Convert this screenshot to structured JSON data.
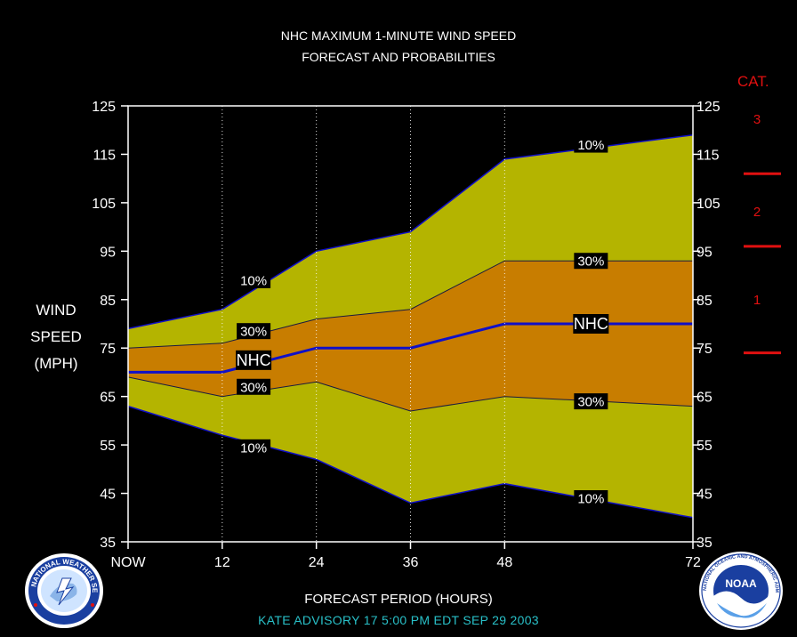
{
  "title": {
    "line1": "NHC MAXIMUM 1-MINUTE WIND SPEED",
    "line2": "FORECAST AND PROBABILITIES"
  },
  "ylabel_lines": [
    "WIND",
    "SPEED",
    "(MPH)"
  ],
  "xlabel": "FORECAST PERIOD (HOURS)",
  "advisory": "KATE   ADVISORY  17  5:00  PM  EDT  SEP  29  2003",
  "category": {
    "title": "CAT.",
    "labels": [
      "3",
      "2",
      "1"
    ],
    "thresholds_mph": [
      111,
      96,
      74
    ]
  },
  "colors": {
    "outer_band": "#b4b400",
    "inner_band": "#c87d00",
    "nhc_line": "#1010c8",
    "category": "#e01010",
    "advisory": "#29c0c8"
  },
  "logos": {
    "left": "nws-logo",
    "right": "noaa-logo",
    "left_ring_text": "NATIONAL WEATHER SERVICE",
    "right_ring_text": "NATIONAL OCEANIC AND ATMOSPHERIC ADMINISTRATION U.S. DEPARTMENT OF COMMERCE",
    "right_center_text": "NOAA"
  },
  "chart_data": {
    "type": "area",
    "x": [
      0,
      12,
      24,
      36,
      48,
      72
    ],
    "xticks": [
      0,
      12,
      24,
      36,
      48,
      72
    ],
    "xtick_labels": [
      "NOW",
      "12",
      "24",
      "36",
      "48",
      "72"
    ],
    "xlim": [
      0,
      72
    ],
    "ylim": [
      35,
      125
    ],
    "yticks": [
      35,
      45,
      55,
      65,
      75,
      85,
      95,
      105,
      115,
      125
    ],
    "grid": "vertical dotted at forecast hours",
    "series": [
      {
        "name": "10%",
        "role": "upper_outer",
        "values": [
          79,
          83,
          95,
          99,
          114,
          119
        ]
      },
      {
        "name": "30%",
        "role": "upper_inner",
        "values": [
          75,
          76,
          81,
          83,
          93,
          93
        ]
      },
      {
        "name": "NHC",
        "role": "forecast",
        "values": [
          70,
          70,
          75,
          75,
          80,
          80
        ]
      },
      {
        "name": "30%",
        "role": "lower_inner",
        "values": [
          69,
          65,
          68,
          62,
          65,
          63
        ]
      },
      {
        "name": "10%",
        "role": "lower_outer",
        "values": [
          63,
          57,
          52,
          43,
          47,
          40
        ]
      }
    ],
    "annotations": [
      {
        "text": "10%",
        "x": 16,
        "y": 89
      },
      {
        "text": "30%",
        "x": 16,
        "y": 78.5
      },
      {
        "text": "NHC",
        "x": 16,
        "y": 72.5
      },
      {
        "text": "30%",
        "x": 16,
        "y": 67
      },
      {
        "text": "10%",
        "x": 16,
        "y": 54.5
      },
      {
        "text": "10%",
        "x": 59,
        "y": 117
      },
      {
        "text": "30%",
        "x": 59,
        "y": 93
      },
      {
        "text": "NHC",
        "x": 59,
        "y": 80
      },
      {
        "text": "30%",
        "x": 59,
        "y": 64
      },
      {
        "text": "10%",
        "x": 59,
        "y": 44
      }
    ]
  }
}
